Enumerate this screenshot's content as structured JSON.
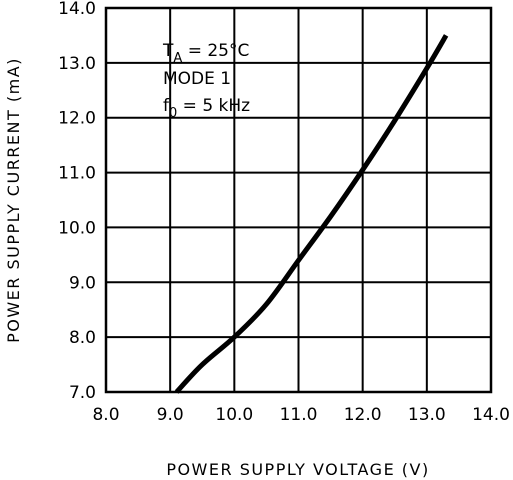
{
  "chart_data": {
    "type": "line",
    "title": "",
    "xlabel": "POWER SUPPLY VOLTAGE (V)",
    "ylabel": "POWER SUPPLY CURRENT (mA)",
    "xlim": [
      8.0,
      14.0
    ],
    "ylim": [
      7.0,
      14.0
    ],
    "grid": true,
    "x_ticks": [
      "8.0",
      "9.0",
      "10.0",
      "11.0",
      "12.0",
      "13.0",
      "14.0"
    ],
    "y_ticks": [
      "7.0",
      "8.0",
      "9.0",
      "10.0",
      "11.0",
      "12.0",
      "13.0",
      "14.0"
    ],
    "annotation": {
      "line1_main": "T",
      "line1_sub": "A",
      "line1_rest": " = 25°C",
      "line2": "MODE 1",
      "line3_main": "f",
      "line3_sub": "0",
      "line3_rest": " = 5 kHz"
    },
    "series": [
      {
        "x": [
          9.1,
          9.5,
          10.0,
          10.5,
          11.0,
          11.5,
          12.0,
          12.5,
          13.0,
          13.3
        ],
        "y": [
          7.0,
          7.5,
          8.0,
          8.6,
          9.4,
          10.2,
          11.05,
          11.95,
          12.9,
          13.5
        ]
      }
    ]
  }
}
